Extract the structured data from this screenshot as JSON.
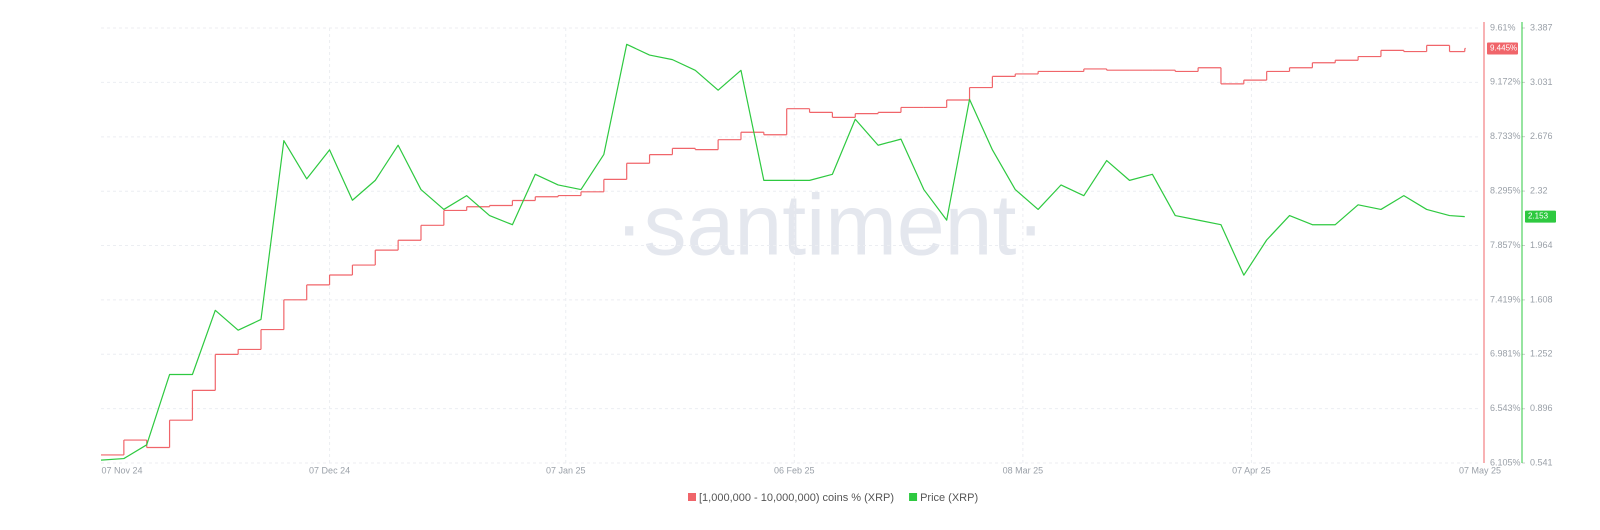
{
  "chart_data": {
    "type": "line",
    "watermark": "·santiment·",
    "grid": true,
    "legend": "bottom",
    "x": [
      0,
      3,
      6,
      9,
      12,
      15,
      18,
      21,
      24,
      27,
      30,
      33,
      36,
      39,
      42,
      45,
      48,
      51,
      54,
      57,
      60,
      63,
      66,
      69,
      72,
      75,
      78,
      81,
      84,
      87,
      90,
      93,
      96,
      99,
      102,
      105,
      108,
      111,
      114,
      117,
      120,
      123,
      126,
      129,
      132,
      135,
      138,
      141,
      144,
      147,
      150,
      153,
      156,
      159,
      162,
      165,
      168,
      171,
      174,
      177,
      179
    ],
    "xlim": [
      0,
      181
    ],
    "xticks": [
      {
        "value": 0,
        "label": "07 Nov 24"
      },
      {
        "value": 30,
        "label": "07 Dec 24"
      },
      {
        "value": 61,
        "label": "07 Jan 25"
      },
      {
        "value": 91,
        "label": "06 Feb 25"
      },
      {
        "value": 121,
        "label": "08 Mar 25"
      },
      {
        "value": 151,
        "label": "07 Apr 25"
      },
      {
        "value": 181,
        "label": "07 May 25"
      }
    ],
    "ylim": [
      6.105,
      9.61
    ],
    "yticks": [
      {
        "value": 9.61,
        "label": "9.61%"
      },
      {
        "value": 9.172,
        "label": "9.172%"
      },
      {
        "value": 8.733,
        "label": "8.733%"
      },
      {
        "value": 8.295,
        "label": "8.295%"
      },
      {
        "value": 7.857,
        "label": "7.857%"
      },
      {
        "value": 7.419,
        "label": "7.419%"
      },
      {
        "value": 6.981,
        "label": "6.981%"
      },
      {
        "value": 6.543,
        "label": "6.543%"
      },
      {
        "value": 6.105,
        "label": "6.105%"
      }
    ],
    "y2lim": [
      0.541,
      3.387
    ],
    "y2ticks": [
      3.387,
      3.031,
      2.676,
      2.32,
      1.964,
      1.608,
      1.252,
      0.896,
      0.541
    ],
    "series": [
      {
        "name": "[1,000,000 - 10,000,000) coins % (XRP)",
        "color": "#f0656a",
        "interpolation": "step",
        "values": [
          6.17,
          6.29,
          6.23,
          6.45,
          6.69,
          6.98,
          7.02,
          7.18,
          7.42,
          7.54,
          7.62,
          7.7,
          7.82,
          7.9,
          8.02,
          8.14,
          8.17,
          8.18,
          8.22,
          8.25,
          8.26,
          8.29,
          8.39,
          8.52,
          8.59,
          8.64,
          8.63,
          8.71,
          8.77,
          8.75,
          8.96,
          8.93,
          8.89,
          8.92,
          8.93,
          8.97,
          8.97,
          9.03,
          9.13,
          9.22,
          9.24,
          9.26,
          9.26,
          9.28,
          9.27,
          9.27,
          9.27,
          9.26,
          9.29,
          9.16,
          9.19,
          9.26,
          9.29,
          9.33,
          9.35,
          9.38,
          9.43,
          9.42,
          9.47,
          9.42,
          9.445
        ],
        "value_labels": [
          null,
          null,
          null,
          null,
          null,
          null,
          null,
          null,
          null,
          null,
          null,
          null,
          null,
          null,
          null,
          null,
          null,
          null,
          null,
          null,
          null,
          null,
          null,
          null,
          null,
          null,
          null,
          null,
          null,
          null,
          null,
          null,
          null,
          null,
          null,
          null,
          null,
          null,
          null,
          null,
          null,
          null,
          null,
          null,
          null,
          null,
          null,
          null,
          null,
          null,
          null,
          null,
          null,
          null,
          null,
          null,
          null,
          null,
          null,
          null,
          "9.445%"
        ]
      },
      {
        "name": "Price (XRP)",
        "color": "#2ec940",
        "axis": "y2",
        "values": [
          0.56,
          0.57,
          0.66,
          1.12,
          1.12,
          1.54,
          1.41,
          1.48,
          2.65,
          2.4,
          2.59,
          2.26,
          2.39,
          2.62,
          2.33,
          2.2,
          2.29,
          2.16,
          2.1,
          2.43,
          2.36,
          2.33,
          2.56,
          3.28,
          3.21,
          3.18,
          3.11,
          2.98,
          3.11,
          2.39,
          2.39,
          2.39,
          2.43,
          2.79,
          2.62,
          2.66,
          2.33,
          2.13,
          2.92,
          2.59,
          2.33,
          2.2,
          2.36,
          2.29,
          2.52,
          2.39,
          2.43,
          2.16,
          2.13,
          2.1,
          1.77,
          2.0,
          2.16,
          2.1,
          2.1,
          2.23,
          2.2,
          2.29,
          2.2,
          2.16,
          2.153
        ],
        "value_labels": [
          null,
          null,
          null,
          null,
          null,
          null,
          null,
          null,
          null,
          null,
          null,
          null,
          null,
          null,
          null,
          null,
          null,
          null,
          null,
          null,
          null,
          null,
          null,
          null,
          null,
          null,
          null,
          null,
          null,
          null,
          null,
          null,
          null,
          null,
          null,
          null,
          null,
          null,
          null,
          null,
          null,
          null,
          null,
          null,
          null,
          null,
          null,
          null,
          null,
          null,
          null,
          null,
          null,
          null,
          null,
          null,
          null,
          null,
          null,
          null,
          "2.153"
        ]
      }
    ]
  }
}
